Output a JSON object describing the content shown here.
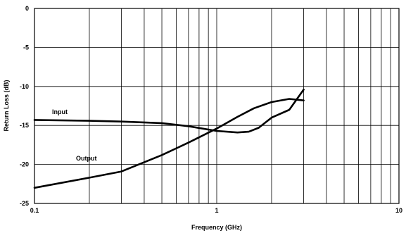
{
  "chart_data": {
    "type": "line",
    "title": "",
    "xlabel": "Frequency (GHz)",
    "ylabel": "Return Loss (dB)",
    "x_scale": "log",
    "xlim": [
      0.1,
      10
    ],
    "ylim": [
      -25,
      0
    ],
    "grid": true,
    "x_ticks": [
      "0.1",
      "1",
      "10"
    ],
    "y_ticks": [
      "0",
      "-5",
      "-10",
      "-15",
      "-20",
      "-25"
    ],
    "annotations": [
      "Input",
      "Output"
    ],
    "series": [
      {
        "name": "Input",
        "x": [
          0.1,
          0.2,
          0.3,
          0.5,
          0.7,
          1.0,
          1.3,
          1.5,
          1.7,
          2.0,
          2.5,
          3.0
        ],
        "y": [
          -14.3,
          -14.4,
          -14.5,
          -14.7,
          -15.1,
          -15.7,
          -15.9,
          -15.8,
          -15.3,
          -14.0,
          -13.0,
          -10.4
        ]
      },
      {
        "name": "Output",
        "x": [
          0.1,
          0.2,
          0.3,
          0.5,
          0.7,
          1.0,
          1.3,
          1.6,
          2.0,
          2.5,
          3.0
        ],
        "y": [
          -23.0,
          -21.7,
          -20.9,
          -18.8,
          -17.2,
          -15.4,
          -13.9,
          -12.8,
          -12.0,
          -11.6,
          -11.8
        ]
      }
    ]
  }
}
